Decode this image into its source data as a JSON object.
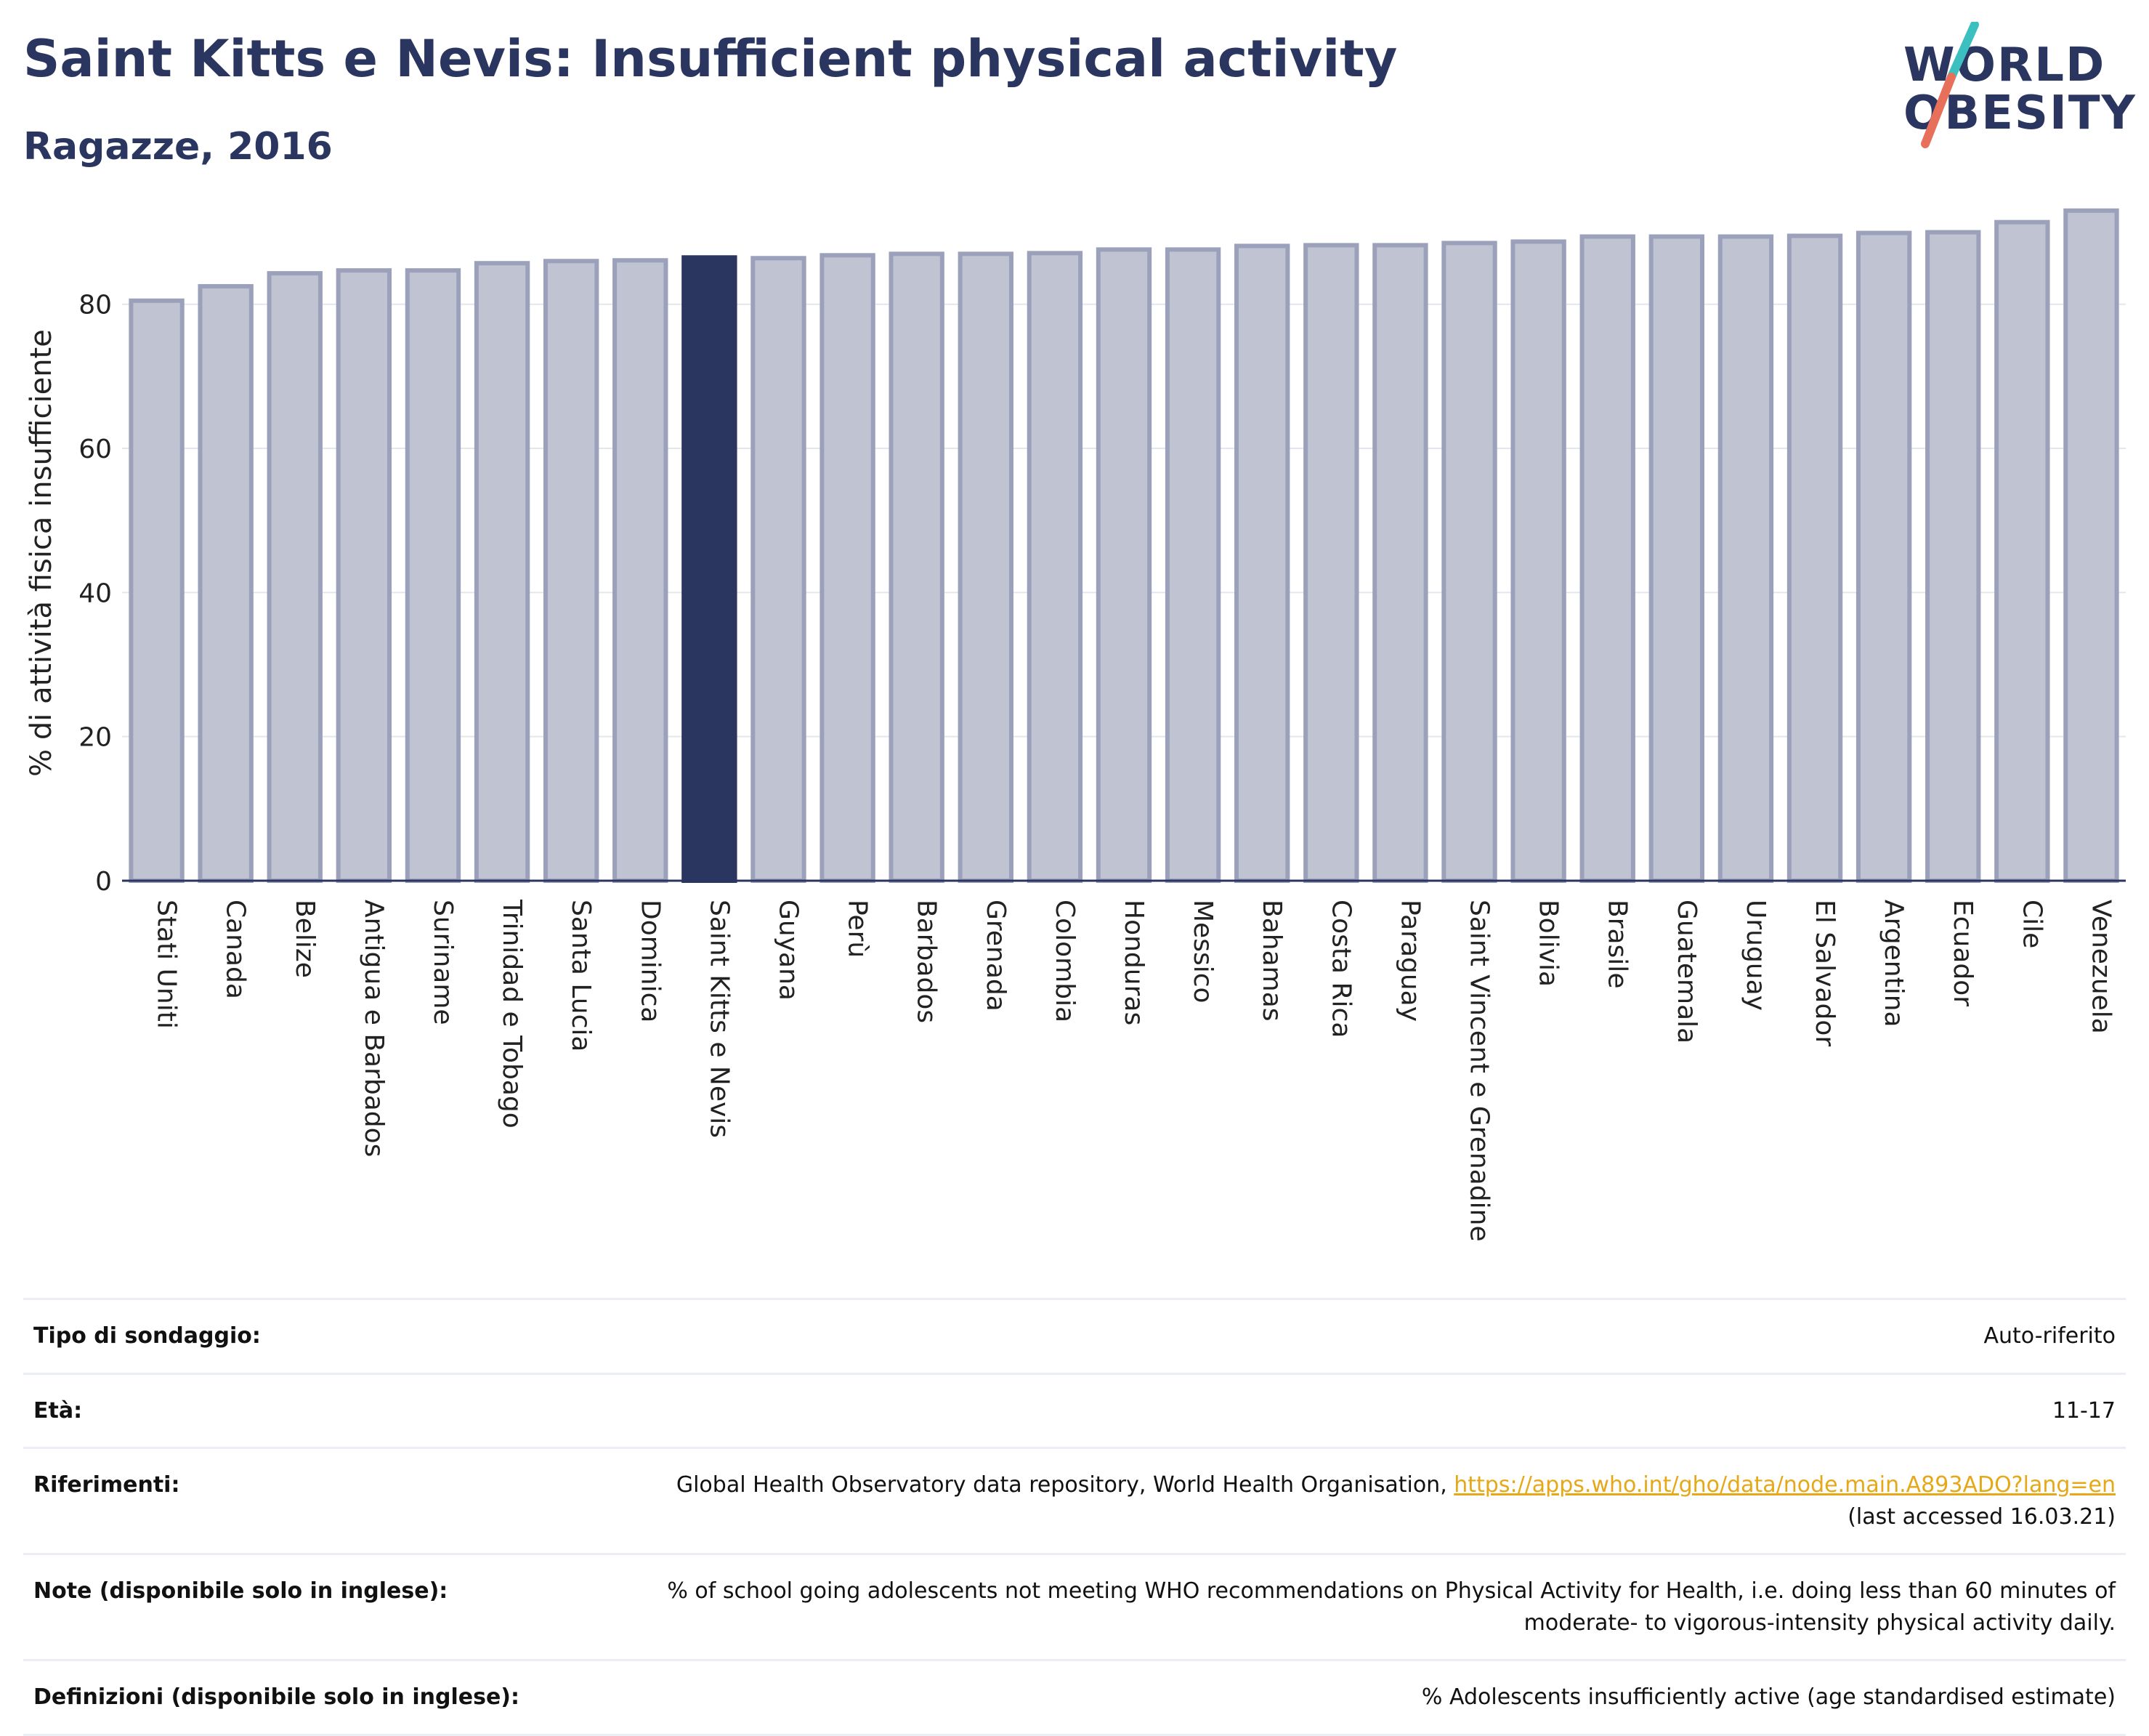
{
  "header": {
    "title": "Saint Kitts e Nevis: Insufficient physical activity",
    "subtitle": "Ragazze, 2016"
  },
  "logo": {
    "line1": "WORLD",
    "line2": "OBESITY",
    "colors": [
      "#2a3560",
      "#e8705a",
      "#3cbfbf"
    ]
  },
  "chart_data": {
    "type": "bar",
    "categories": [
      "Stati Uniti",
      "Canada",
      "Belize",
      "Antigua e Barbados",
      "Suriname",
      "Trinidad e Tobago",
      "Santa Lucia",
      "Dominica",
      "Saint Kitts e Nevis",
      "Guyana",
      "Perù",
      "Barbados",
      "Grenada",
      "Colombia",
      "Honduras",
      "Messico",
      "Bahamas",
      "Costa Rica",
      "Paraguay",
      "Saint Vincent e Grenadine",
      "Bolivia",
      "Brasile",
      "Guatemala",
      "Uruguay",
      "El Salvador",
      "Argentina",
      "Ecuador",
      "Cile",
      "Venezuela"
    ],
    "values": [
      80.5,
      82.5,
      84.3,
      84.7,
      84.7,
      85.7,
      86.0,
      86.1,
      86.5,
      86.4,
      86.8,
      87.0,
      87.0,
      87.1,
      87.6,
      87.6,
      88.1,
      88.2,
      88.2,
      88.5,
      88.7,
      89.4,
      89.4,
      89.4,
      89.5,
      89.9,
      90.0,
      91.4,
      93.0
    ],
    "highlight": "Saint Kitts e Nevis",
    "ylabel": "% di attività fisica insufficiente",
    "xlabel": "",
    "ylim": [
      0,
      95
    ],
    "yticks": [
      0,
      20,
      40,
      60,
      80
    ],
    "grid": true,
    "colors": {
      "bar": "#c0c3d1",
      "bar_edge": "#9ba1ba",
      "highlight": "#2a3560"
    }
  },
  "meta": {
    "rows": [
      {
        "key": "Tipo di sondaggio:",
        "value": "Auto-riferito"
      },
      {
        "key": "Età:",
        "value": "11-17"
      },
      {
        "key": "Riferimenti:",
        "value": "Global Health Observatory data repository, World Health Organisation, ",
        "link": "https://apps.who.int/gho/data/node.main.A893ADO?lang=en",
        "value2": "(last accessed 16.03.21)"
      },
      {
        "key": "Note (disponibile solo in inglese):",
        "value": "% of school going adolescents not meeting WHO recommendations on Physical Activity for Health, i.e. doing less than 60 minutes of moderate- to vigorous-intensity physical activity daily."
      },
      {
        "key": "Definizioni (disponibile solo in inglese):",
        "value": "% Adolescents insufficiently active (age standardised estimate)"
      }
    ]
  }
}
